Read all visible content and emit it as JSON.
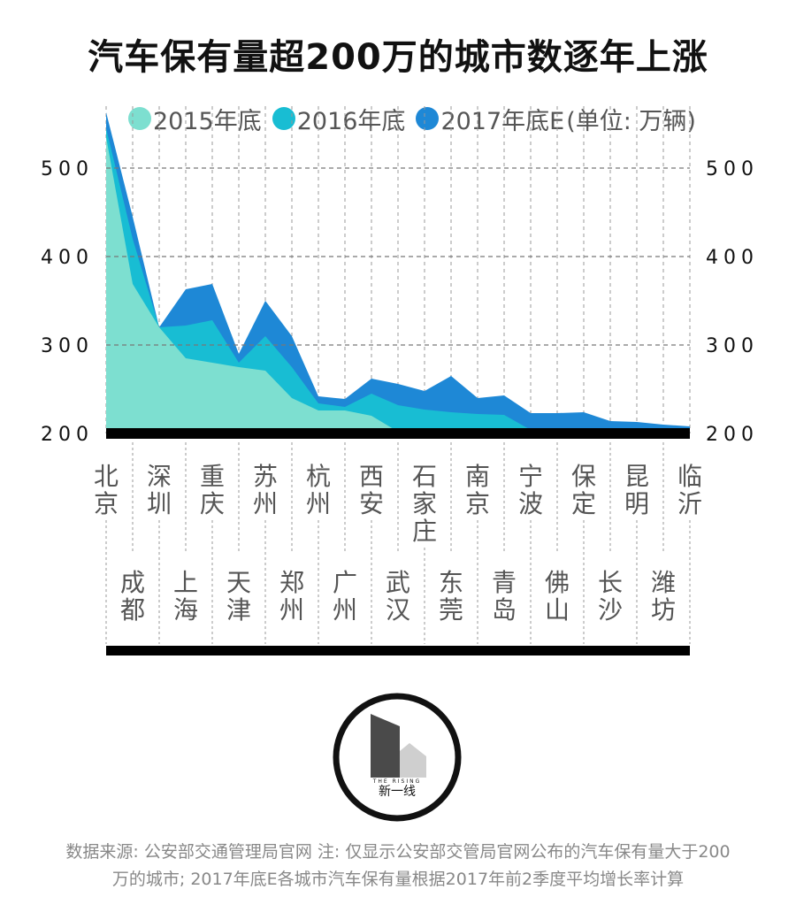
{
  "title": "汽车保有量超200万的城市数逐年上涨",
  "legend": {
    "items": [
      {
        "label": "2015年底",
        "color": "#7ddfd0"
      },
      {
        "label": "2016年底",
        "color": "#18bdd3"
      },
      {
        "label": "2017年底E",
        "color": "#1e88d6"
      }
    ],
    "unit": "(单位: 万辆)"
  },
  "chart_data": {
    "type": "area",
    "x": [
      "北京",
      "成都",
      "深圳",
      "上海",
      "重庆",
      "天津",
      "苏州",
      "郑州",
      "杭州",
      "广州",
      "西安",
      "武汉",
      "石家庄",
      "东莞",
      "南京",
      "青岛",
      "宁波",
      "佛山",
      "保定",
      "长沙",
      "昆明",
      "潍坊",
      "临沂"
    ],
    "series": [
      {
        "name": "2015年底",
        "values": [
          535,
          369,
          320,
          285,
          280,
          275,
          271,
          240,
          226,
          226,
          220,
          202,
          200,
          200,
          200,
          200,
          200,
          200,
          200,
          200,
          200,
          200,
          200
        ]
      },
      {
        "name": "2016年底",
        "values": [
          545,
          420,
          320,
          322,
          328,
          280,
          310,
          275,
          234,
          230,
          245,
          232,
          227,
          224,
          222,
          221,
          204,
          200,
          200,
          200,
          200,
          200,
          200
        ]
      },
      {
        "name": "2017年底E",
        "values": [
          563,
          445,
          320,
          363,
          369,
          290,
          350,
          310,
          242,
          239,
          262,
          256,
          248,
          265,
          240,
          243,
          223,
          223,
          224,
          214,
          213,
          210,
          208
        ]
      }
    ],
    "ylim": [
      200,
      560
    ],
    "yticks": [
      "200",
      "300",
      "400",
      "500"
    ],
    "grid": true
  },
  "footnote": {
    "line1": "数据来源: 公安部交通管理局官网  注: 仅显示公安部交管局官网公布的汽车保有量大于200",
    "line2": "万的城市; 2017年底E各城市汽车保有量根据2017年前2季度平均增长率计算"
  },
  "logo": {
    "small_text": "THE RISING",
    "text": "新一线"
  }
}
